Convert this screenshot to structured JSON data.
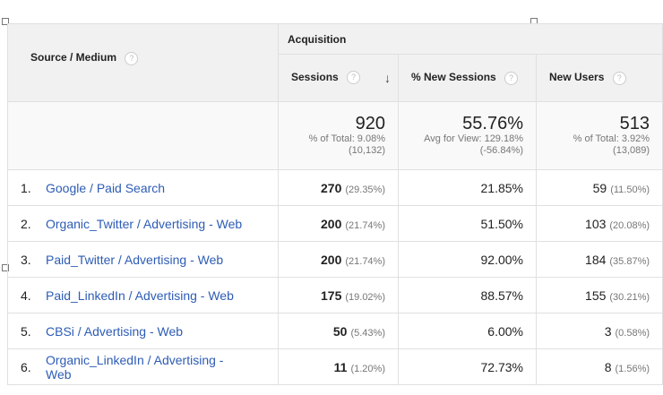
{
  "header": {
    "source_medium": "Source / Medium",
    "acquisition": "Acquisition",
    "sessions": "Sessions",
    "new_sessions": "% New Sessions",
    "new_users": "New Users",
    "help": "?",
    "sort_arrow": "↓"
  },
  "summary": {
    "sessions": {
      "value": "920",
      "line1": "% of Total: 9.08%",
      "line2": "(10,132)"
    },
    "new_sessions": {
      "value": "55.76%",
      "line1": "Avg for View: 129.18%",
      "line2": "(-56.84%)"
    },
    "new_users": {
      "value": "513",
      "line1": "% of Total: 3.92%",
      "line2": "(13,089)"
    }
  },
  "rows": [
    {
      "index": "1.",
      "source": "Google / Paid Search",
      "sessions": "270",
      "sessions_pct": "(29.35%)",
      "new_sessions": "21.85%",
      "new_users": "59",
      "new_users_pct": "(11.50%)"
    },
    {
      "index": "2.",
      "source": "Organic_Twitter / Advertising - Web",
      "sessions": "200",
      "sessions_pct": "(21.74%)",
      "new_sessions": "51.50%",
      "new_users": "103",
      "new_users_pct": "(20.08%)"
    },
    {
      "index": "3.",
      "source": "Paid_Twitter / Advertising - Web",
      "sessions": "200",
      "sessions_pct": "(21.74%)",
      "new_sessions": "92.00%",
      "new_users": "184",
      "new_users_pct": "(35.87%)"
    },
    {
      "index": "4.",
      "source": "Paid_LinkedIn / Advertising - Web",
      "sessions": "175",
      "sessions_pct": "(19.02%)",
      "new_sessions": "88.57%",
      "new_users": "155",
      "new_users_pct": "(30.21%)"
    },
    {
      "index": "5.",
      "source": "CBSi / Advertising - Web",
      "sessions": "50",
      "sessions_pct": "(5.43%)",
      "new_sessions": "6.00%",
      "new_users": "3",
      "new_users_pct": "(0.58%)"
    },
    {
      "index": "6.",
      "source": "Organic_LinkedIn / Advertising - Web",
      "sessions": "11",
      "sessions_pct": "(1.20%)",
      "new_sessions": "72.73%",
      "new_users": "8",
      "new_users_pct": "(1.56%)"
    }
  ],
  "colors": {
    "link": "#2d5cb5",
    "header_bg": "#f1f1f1",
    "border": "#e0e0e0"
  }
}
